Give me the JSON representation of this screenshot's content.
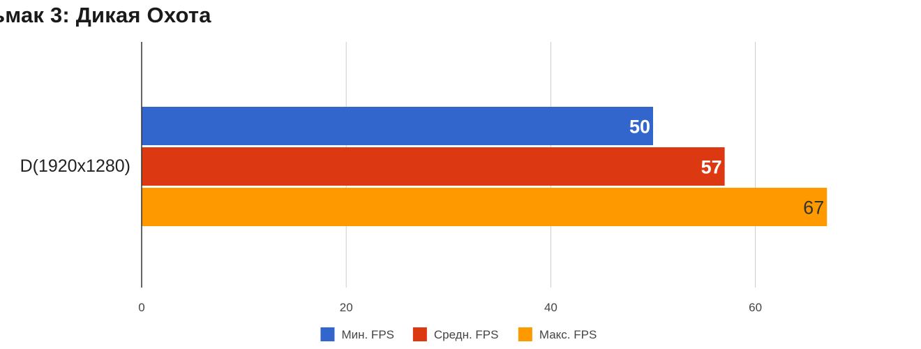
{
  "chart_data": {
    "type": "bar",
    "orientation": "horizontal",
    "title": "ьмак 3: Дикая Охота",
    "categories": [
      "D(1920x1280)"
    ],
    "series": [
      {
        "name": "Мин. FPS",
        "values": [
          50
        ],
        "color": "#3366cc",
        "label_color": "#ffffff"
      },
      {
        "name": "Средн. FPS",
        "values": [
          57
        ],
        "color": "#dc3912",
        "label_color": "#ffffff"
      },
      {
        "name": "Макс. FPS",
        "values": [
          67
        ],
        "color": "#ff9900",
        "label_color": "#333333"
      }
    ],
    "xlim": [
      0,
      67
    ],
    "x_ticks": [
      0,
      20,
      40,
      60
    ],
    "grid": true,
    "legend_position": "bottom",
    "xlabel": "",
    "ylabel": ""
  }
}
